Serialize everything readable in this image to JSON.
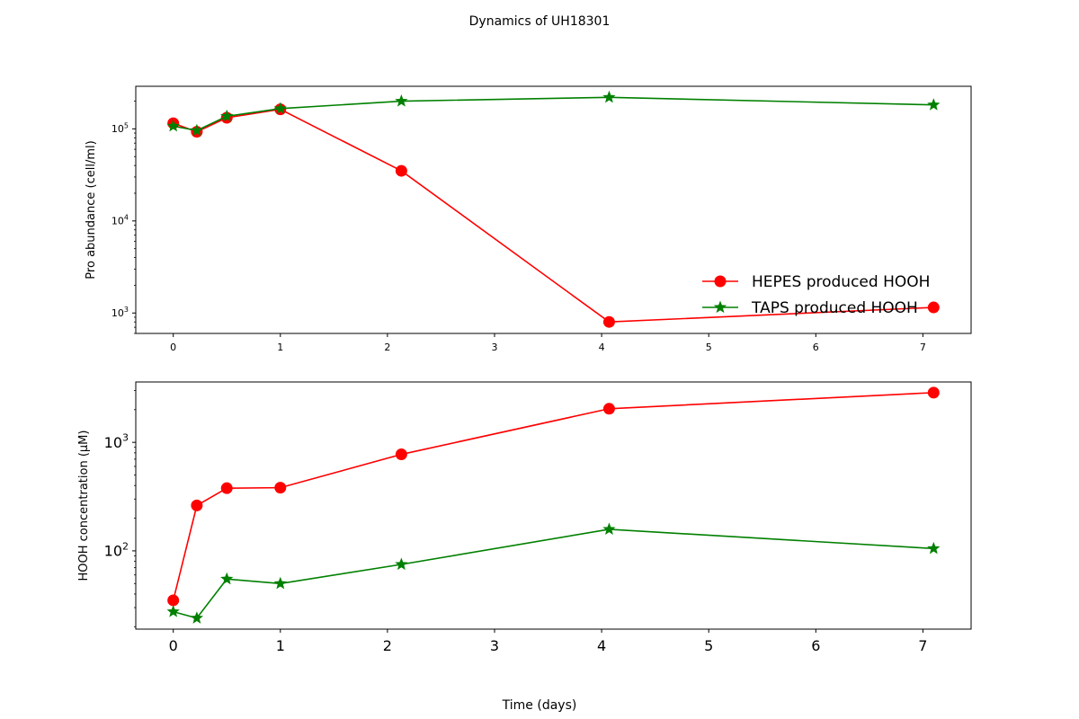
{
  "figure": {
    "suptitle": "Dynamics of UH18301",
    "xlabel": "Time (days)"
  },
  "chart_data": [
    {
      "type": "line",
      "ylabel": "Pro abundance (cell/ml)",
      "yscale": "log",
      "xlim": [
        -0.35,
        7.45
      ],
      "ylim": [
        600,
        290000
      ],
      "xticks": [
        0,
        1,
        2,
        3,
        4,
        5,
        6,
        7
      ],
      "yticks": [
        1000,
        10000,
        100000
      ],
      "ytick_labels": [
        [
          "10",
          "3"
        ],
        [
          "10",
          "4"
        ],
        [
          "10",
          "5"
        ]
      ],
      "legend": {
        "placement": "lower-right",
        "frame": false
      },
      "series": [
        {
          "name": "HEPES produced HOOH",
          "color": "#ff0000",
          "marker": "circle",
          "x": [
            0,
            0.22,
            0.5,
            1.0,
            2.13,
            4.07,
            7.1
          ],
          "y": [
            115000,
            93000,
            132000,
            163000,
            35000,
            800,
            1150
          ]
        },
        {
          "name": "TAPS produced HOOH",
          "color": "#008000",
          "marker": "star",
          "x": [
            0,
            0.22,
            0.5,
            1.0,
            2.13,
            4.07,
            7.1
          ],
          "y": [
            107000,
            96000,
            137000,
            166000,
            200000,
            220000,
            182000
          ]
        }
      ]
    },
    {
      "type": "line",
      "ylabel": "HOOH concentration (µM)",
      "yscale": "log",
      "xlim": [
        -0.35,
        7.45
      ],
      "ylim": [
        19,
        3600
      ],
      "xticks": [
        0,
        1,
        2,
        3,
        4,
        5,
        6,
        7
      ],
      "yticks": [
        100,
        1000
      ],
      "ytick_labels": [
        [
          "10",
          "2"
        ],
        [
          "10",
          "3"
        ]
      ],
      "series": [
        {
          "name": "HEPES produced HOOH",
          "color": "#ff0000",
          "marker": "circle",
          "x": [
            0,
            0.22,
            0.5,
            1.0,
            2.13,
            4.07,
            7.1
          ],
          "y": [
            35,
            262,
            378,
            382,
            775,
            2040,
            2870
          ]
        },
        {
          "name": "TAPS produced HOOH",
          "color": "#008000",
          "marker": "star",
          "x": [
            0,
            0.22,
            0.5,
            1.0,
            2.13,
            4.07,
            7.1
          ],
          "y": [
            27.5,
            24,
            55,
            50,
            75,
            158,
            105
          ]
        }
      ]
    }
  ]
}
